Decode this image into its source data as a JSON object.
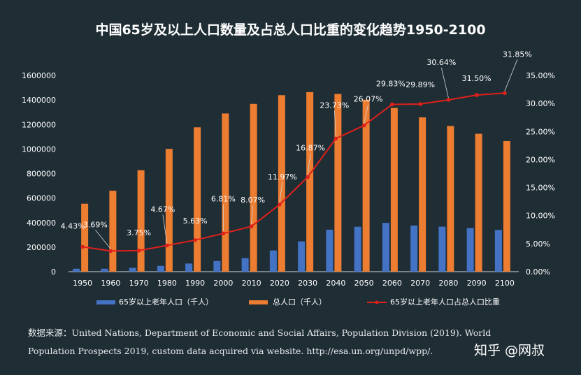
{
  "chart_data": {
    "type": "bar",
    "title": "中国65岁及以上人口数量及占总人口比重的变化趋势1950-2100",
    "categories": [
      "1950",
      "1960",
      "1970",
      "1980",
      "1990",
      "2000",
      "2010",
      "2020",
      "2030",
      "2040",
      "2050",
      "2060",
      "2070",
      "2080",
      "2090",
      "2100"
    ],
    "left_axis": {
      "min": 0,
      "max": 1600000,
      "ticks": [
        "0",
        "200000",
        "400000",
        "600000",
        "800000",
        "1000000",
        "1200000",
        "1400000",
        "1600000"
      ]
    },
    "right_axis": {
      "min": 0,
      "max": 35,
      "ticks": [
        "0.00%",
        "5.00%",
        "10.00%",
        "15.00%",
        "20.00%",
        "25.00%",
        "30.00%",
        "35.00%"
      ]
    },
    "series": [
      {
        "name": "65岁以上老年人口（千人）",
        "type": "bar",
        "axis": "left",
        "color": "#4472c4",
        "values": [
          24000,
          24000,
          31000,
          47000,
          66000,
          87000,
          110000,
          173000,
          247000,
          342000,
          366000,
          398000,
          376000,
          367000,
          355000,
          340000
        ]
      },
      {
        "name": "总人口（千人）",
        "type": "bar",
        "axis": "left",
        "color": "#ed7d31",
        "values": [
          554000,
          660000,
          827000,
          1001000,
          1177000,
          1290000,
          1368000,
          1439000,
          1464000,
          1449000,
          1402000,
          1335000,
          1258000,
          1188000,
          1124000,
          1065000
        ]
      },
      {
        "name": "65岁以上老年人口占总人口比重",
        "type": "line",
        "axis": "right",
        "color": "#e0201b",
        "values": [
          4.43,
          3.69,
          3.75,
          4.67,
          5.63,
          6.81,
          8.07,
          11.97,
          16.87,
          23.73,
          26.07,
          29.83,
          29.89,
          30.64,
          31.5,
          31.85
        ],
        "labels": [
          "4.43%",
          "3.69%",
          "3.75%",
          "4.67%",
          "5.63%",
          "6.81%",
          "8.07%",
          "11.97%",
          "16.87%",
          "23.73%",
          "26.07%",
          "29.83%",
          "29.89%",
          "30.64%",
          "31.50%",
          "31.85%"
        ]
      }
    ],
    "legend_position": "bottom",
    "grid": false
  },
  "source_text": "数据来源：United Nations, Department of Economic and Social Affairs, Population Division (2019). World Population Prospects 2019, custom data acquired via website. http://esa.un.org/unpd/wpp/.",
  "watermark": "知乎 @网叔",
  "colors": {
    "background": "#1f2d35",
    "text": "#ffffff",
    "axis": "#cfd6da"
  }
}
